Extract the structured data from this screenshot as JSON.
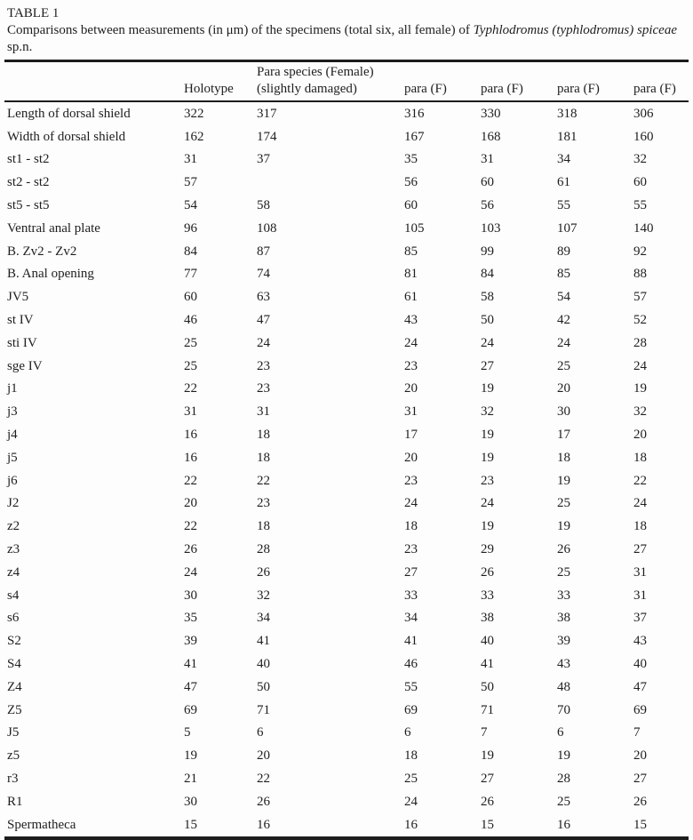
{
  "page": {
    "table_label": "TABLE 1",
    "caption": {
      "prefix": "Comparisons between measurements (in μm) of the specimens (total six, all female) of ",
      "species_italic": "Typhlodromus (typhlodromus) spiceae",
      "suffix": "sp.n."
    }
  },
  "table": {
    "column_headers": {
      "specimen_label": "",
      "holotype": "Holotype",
      "para_species_line1": "Para species (Female)",
      "para_species_line2": "(slightly damaged)",
      "para_f_1": "para (F)",
      "para_f_2": "para (F)",
      "para_f_3": "para (F)",
      "para_f_4": "para (F)"
    },
    "rows": [
      {
        "label": "Length of dorsal shield",
        "values": [
          "322",
          "317",
          "316",
          "330",
          "318",
          "306"
        ]
      },
      {
        "label": "Width of dorsal shield",
        "values": [
          "162",
          "174",
          "167",
          "168",
          "181",
          "160"
        ]
      },
      {
        "label": "st1 - st2",
        "values": [
          "31",
          "37",
          "35",
          "31",
          "34",
          "32"
        ]
      },
      {
        "label": "st2 - st2",
        "values": [
          "57",
          "",
          "56",
          "60",
          "61",
          "60"
        ]
      },
      {
        "label": "st5 - st5",
        "values": [
          "54",
          "58",
          "60",
          "56",
          "55",
          "55"
        ]
      },
      {
        "label": "Ventral anal plate",
        "values": [
          "96",
          "108",
          "105",
          "103",
          "107",
          "140"
        ]
      },
      {
        "label": "B. Zv2 - Zv2",
        "values": [
          "84",
          "87",
          "85",
          "99",
          "89",
          "92"
        ]
      },
      {
        "label": "B. Anal opening",
        "values": [
          "77",
          "74",
          "81",
          "84",
          "85",
          "88"
        ]
      },
      {
        "label": "JV5",
        "values": [
          "60",
          "63",
          "61",
          "58",
          "54",
          "57"
        ]
      },
      {
        "label": "st IV",
        "values": [
          "46",
          "47",
          "43",
          "50",
          "42",
          "52"
        ]
      },
      {
        "label": "sti IV",
        "values": [
          "25",
          "24",
          "24",
          "24",
          "24",
          "28"
        ]
      },
      {
        "label": "sge IV",
        "values": [
          "25",
          "23",
          "23",
          "27",
          "25",
          "24"
        ]
      },
      {
        "label": "j1",
        "values": [
          "22",
          "23",
          "20",
          "19",
          "20",
          "19"
        ]
      },
      {
        "label": "j3",
        "values": [
          "31",
          "31",
          "31",
          "32",
          "30",
          "32"
        ]
      },
      {
        "label": "j4",
        "values": [
          "16",
          "18",
          "17",
          "19",
          "17",
          "20"
        ]
      },
      {
        "label": "j5",
        "values": [
          "16",
          "18",
          "20",
          "19",
          "18",
          "18"
        ]
      },
      {
        "label": "j6",
        "values": [
          "22",
          "22",
          "23",
          "23",
          "19",
          "22"
        ]
      },
      {
        "label": "J2",
        "values": [
          "20",
          "23",
          "24",
          "24",
          "25",
          "24"
        ]
      },
      {
        "label": "z2",
        "values": [
          "22",
          "18",
          "18",
          "19",
          "19",
          "18"
        ]
      },
      {
        "label": "z3",
        "values": [
          "26",
          "28",
          "23",
          "29",
          "26",
          "27"
        ]
      },
      {
        "label": "z4",
        "values": [
          "24",
          "26",
          "27",
          "26",
          "25",
          "31"
        ]
      },
      {
        "label": "s4",
        "values": [
          "30",
          "32",
          "33",
          "33",
          "33",
          "31"
        ]
      },
      {
        "label": "s6",
        "values": [
          "35",
          "34",
          "34",
          "38",
          "38",
          "37"
        ]
      },
      {
        "label": "S2",
        "values": [
          "39",
          "41",
          "41",
          "40",
          "39",
          "43"
        ]
      },
      {
        "label": "S4",
        "values": [
          "41",
          "40",
          "46",
          "41",
          "43",
          "40"
        ]
      },
      {
        "label": "Z4",
        "values": [
          "47",
          "50",
          "55",
          "50",
          "48",
          "47"
        ]
      },
      {
        "label": "Z5",
        "values": [
          "69",
          "71",
          "69",
          "71",
          "70",
          "69"
        ]
      },
      {
        "label": "J5",
        "values": [
          "5",
          "6",
          "6",
          "7",
          "6",
          "7"
        ]
      },
      {
        "label": "z5",
        "values": [
          "19",
          "20",
          "18",
          "19",
          "19",
          "20"
        ]
      },
      {
        "label": "r3",
        "values": [
          "21",
          "22",
          "25",
          "27",
          "28",
          "27"
        ]
      },
      {
        "label": "R1",
        "values": [
          "30",
          "26",
          "24",
          "26",
          "25",
          "26"
        ]
      },
      {
        "label": "Spermatheca",
        "values": [
          "15",
          "16",
          "16",
          "15",
          "16",
          "15"
        ]
      }
    ]
  },
  "colors": {
    "text": "#1e1e1e",
    "rule": "#1c1c1c",
    "background": "#fdfdfd"
  }
}
